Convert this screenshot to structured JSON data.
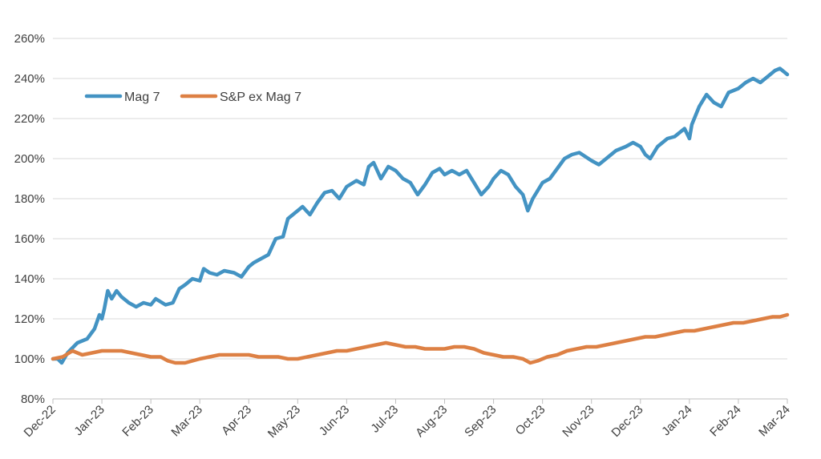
{
  "chart_data": {
    "type": "line",
    "title": "",
    "xlabel": "",
    "ylabel": "",
    "ylim": [
      80,
      260
    ],
    "y_ticks": [
      "80%",
      "100%",
      "120%",
      "140%",
      "160%",
      "180%",
      "200%",
      "220%",
      "240%",
      "260%"
    ],
    "y_tick_values": [
      80,
      100,
      120,
      140,
      160,
      180,
      200,
      220,
      240,
      260
    ],
    "x_ticks": [
      "Dec-22",
      "Jan-23",
      "Feb-23",
      "Mar-23",
      "Apr-23",
      "May-23",
      "Jun-23",
      "Jul-23",
      "Aug-23",
      "Sep-23",
      "Oct-23",
      "Nov-23",
      "Dec-23",
      "Jan-24",
      "Feb-24",
      "Mar-24"
    ],
    "grid": "horizontal",
    "legend_position": "top-left",
    "series": [
      {
        "name": "Mag 7",
        "color": "#4393c3",
        "points": [
          [
            0.0,
            100
          ],
          [
            0.1,
            100
          ],
          [
            0.18,
            98
          ],
          [
            0.3,
            103
          ],
          [
            0.5,
            108
          ],
          [
            0.7,
            110
          ],
          [
            0.85,
            115
          ],
          [
            0.95,
            122
          ],
          [
            1.0,
            120
          ],
          [
            1.05,
            125
          ],
          [
            1.12,
            134
          ],
          [
            1.2,
            130
          ],
          [
            1.3,
            134
          ],
          [
            1.4,
            131
          ],
          [
            1.55,
            128
          ],
          [
            1.7,
            126
          ],
          [
            1.85,
            128
          ],
          [
            2.0,
            127
          ],
          [
            2.1,
            130
          ],
          [
            2.3,
            127
          ],
          [
            2.45,
            128
          ],
          [
            2.58,
            135
          ],
          [
            2.7,
            137
          ],
          [
            2.85,
            140
          ],
          [
            3.0,
            139
          ],
          [
            3.08,
            145
          ],
          [
            3.2,
            143
          ],
          [
            3.35,
            142
          ],
          [
            3.5,
            144
          ],
          [
            3.7,
            143
          ],
          [
            3.85,
            141
          ],
          [
            4.0,
            146
          ],
          [
            4.1,
            148
          ],
          [
            4.25,
            150
          ],
          [
            4.4,
            152
          ],
          [
            4.55,
            160
          ],
          [
            4.7,
            161
          ],
          [
            4.8,
            170
          ],
          [
            4.9,
            172
          ],
          [
            5.0,
            174
          ],
          [
            5.1,
            176
          ],
          [
            5.25,
            172
          ],
          [
            5.4,
            178
          ],
          [
            5.55,
            183
          ],
          [
            5.7,
            184
          ],
          [
            5.85,
            180
          ],
          [
            6.0,
            186
          ],
          [
            6.2,
            189
          ],
          [
            6.35,
            187
          ],
          [
            6.45,
            196
          ],
          [
            6.55,
            198
          ],
          [
            6.7,
            190
          ],
          [
            6.85,
            196
          ],
          [
            7.0,
            194
          ],
          [
            7.15,
            190
          ],
          [
            7.3,
            188
          ],
          [
            7.45,
            182
          ],
          [
            7.6,
            187
          ],
          [
            7.75,
            193
          ],
          [
            7.9,
            195
          ],
          [
            8.0,
            192
          ],
          [
            8.15,
            194
          ],
          [
            8.3,
            192
          ],
          [
            8.45,
            194
          ],
          [
            8.6,
            188
          ],
          [
            8.75,
            182
          ],
          [
            8.9,
            186
          ],
          [
            9.0,
            190
          ],
          [
            9.15,
            194
          ],
          [
            9.3,
            192
          ],
          [
            9.45,
            186
          ],
          [
            9.6,
            182
          ],
          [
            9.7,
            174
          ],
          [
            9.8,
            180
          ],
          [
            9.9,
            184
          ],
          [
            10.0,
            188
          ],
          [
            10.15,
            190
          ],
          [
            10.3,
            195
          ],
          [
            10.45,
            200
          ],
          [
            10.6,
            202
          ],
          [
            10.75,
            203
          ],
          [
            11.0,
            199
          ],
          [
            11.15,
            197
          ],
          [
            11.3,
            200
          ],
          [
            11.5,
            204
          ],
          [
            11.7,
            206
          ],
          [
            11.85,
            208
          ],
          [
            12.0,
            206
          ],
          [
            12.1,
            202
          ],
          [
            12.2,
            200
          ],
          [
            12.35,
            206
          ],
          [
            12.55,
            210
          ],
          [
            12.7,
            211
          ],
          [
            12.9,
            215
          ],
          [
            13.0,
            210
          ],
          [
            13.05,
            217
          ],
          [
            13.2,
            226
          ],
          [
            13.35,
            232
          ],
          [
            13.5,
            228
          ],
          [
            13.65,
            226
          ],
          [
            13.8,
            233
          ],
          [
            14.0,
            235
          ],
          [
            14.15,
            238
          ],
          [
            14.3,
            240
          ],
          [
            14.45,
            238
          ],
          [
            14.6,
            241
          ],
          [
            14.75,
            244
          ],
          [
            14.85,
            245
          ],
          [
            15.0,
            242
          ]
        ]
      },
      {
        "name": "S&P ex Mag 7",
        "color": "#dd8044",
        "points": [
          [
            0.0,
            100
          ],
          [
            0.2,
            101
          ],
          [
            0.4,
            104
          ],
          [
            0.6,
            102
          ],
          [
            0.8,
            103
          ],
          [
            1.0,
            104
          ],
          [
            1.2,
            104
          ],
          [
            1.4,
            104
          ],
          [
            1.6,
            103
          ],
          [
            1.8,
            102
          ],
          [
            2.0,
            101
          ],
          [
            2.2,
            101
          ],
          [
            2.35,
            99
          ],
          [
            2.5,
            98
          ],
          [
            2.7,
            98
          ],
          [
            2.85,
            99
          ],
          [
            3.0,
            100
          ],
          [
            3.2,
            101
          ],
          [
            3.4,
            102
          ],
          [
            3.6,
            102
          ],
          [
            3.8,
            102
          ],
          [
            4.0,
            102
          ],
          [
            4.2,
            101
          ],
          [
            4.4,
            101
          ],
          [
            4.6,
            101
          ],
          [
            4.8,
            100
          ],
          [
            5.0,
            100
          ],
          [
            5.2,
            101
          ],
          [
            5.4,
            102
          ],
          [
            5.6,
            103
          ],
          [
            5.8,
            104
          ],
          [
            6.0,
            104
          ],
          [
            6.2,
            105
          ],
          [
            6.4,
            106
          ],
          [
            6.6,
            107
          ],
          [
            6.8,
            108
          ],
          [
            7.0,
            107
          ],
          [
            7.2,
            106
          ],
          [
            7.4,
            106
          ],
          [
            7.6,
            105
          ],
          [
            7.8,
            105
          ],
          [
            8.0,
            105
          ],
          [
            8.2,
            106
          ],
          [
            8.4,
            106
          ],
          [
            8.6,
            105
          ],
          [
            8.8,
            103
          ],
          [
            9.0,
            102
          ],
          [
            9.2,
            101
          ],
          [
            9.4,
            101
          ],
          [
            9.6,
            100
          ],
          [
            9.75,
            98
          ],
          [
            9.9,
            99
          ],
          [
            10.1,
            101
          ],
          [
            10.3,
            102
          ],
          [
            10.5,
            104
          ],
          [
            10.7,
            105
          ],
          [
            10.9,
            106
          ],
          [
            11.1,
            106
          ],
          [
            11.3,
            107
          ],
          [
            11.5,
            108
          ],
          [
            11.7,
            109
          ],
          [
            11.9,
            110
          ],
          [
            12.1,
            111
          ],
          [
            12.3,
            111
          ],
          [
            12.5,
            112
          ],
          [
            12.7,
            113
          ],
          [
            12.9,
            114
          ],
          [
            13.1,
            114
          ],
          [
            13.3,
            115
          ],
          [
            13.5,
            116
          ],
          [
            13.7,
            117
          ],
          [
            13.9,
            118
          ],
          [
            14.1,
            118
          ],
          [
            14.3,
            119
          ],
          [
            14.5,
            120
          ],
          [
            14.7,
            121
          ],
          [
            14.85,
            121
          ],
          [
            15.0,
            122
          ]
        ]
      }
    ]
  }
}
